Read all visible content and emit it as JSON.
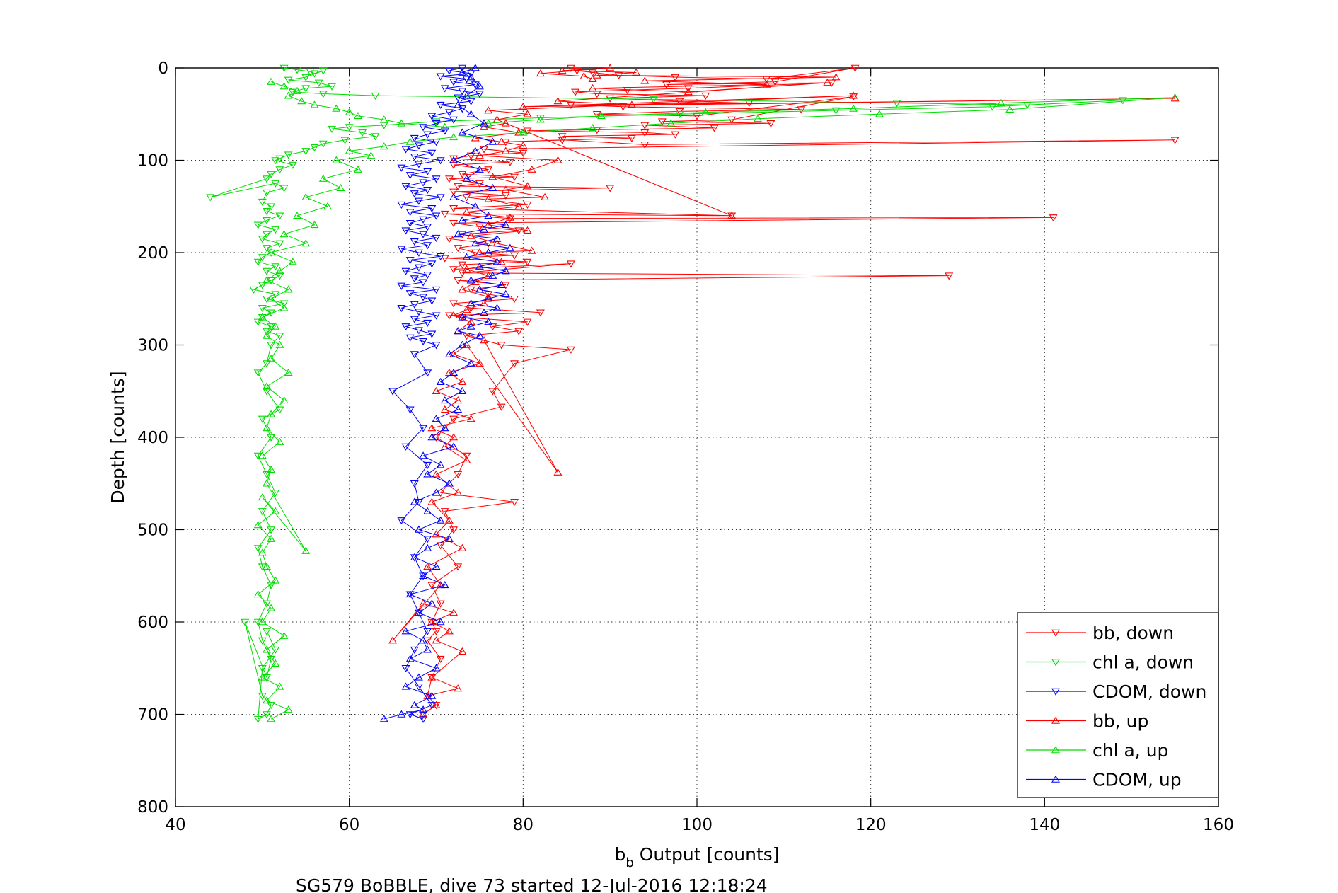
{
  "figure": {
    "caption": "SG579 BoBBLE, dive 73 started 12-Jul-2016 12:18:24"
  },
  "chart_data": {
    "type": "scatter",
    "xlabel_main": "b",
    "xlabel_sub": "b",
    "xlabel_rest": " Output [counts]",
    "ylabel": "Depth [counts]",
    "xlim": [
      40,
      160
    ],
    "ylim": [
      0,
      800
    ],
    "y_reversed": true,
    "xticks": [
      40,
      60,
      80,
      100,
      120,
      140,
      160
    ],
    "yticks": [
      0,
      100,
      200,
      300,
      400,
      500,
      600,
      700,
      800
    ],
    "grid": true,
    "grid_style": "dotted",
    "legend_position": "bottom-right",
    "series": [
      {
        "name": "bb, down",
        "color": "#ff0000",
        "marker": "triangle-down",
        "connected": true,
        "x": [
          85.5,
          86.2,
          88.0,
          91.0,
          97.5,
          108.0,
          118.2,
          109.0,
          96.5,
          115.5,
          99.0,
          92.0,
          86.0,
          88.5,
          101.0,
          90.0,
          98.0,
          106.0,
          85.5,
          91.5,
          112.0,
          98.0,
          88.5,
          100.0,
          118.0,
          104.0,
          96.0,
          108.5,
          94.0,
          102.0,
          88.5,
          80.5,
          94.0,
          97.5,
          84.5,
          92.5,
          78.0,
          84.5,
          94.0,
          155.0,
          75.5,
          80.0,
          74.0,
          72.0,
          78.5,
          72.0,
          76.0,
          73.0,
          79.0,
          71.5,
          75.0,
          72.5,
          90.0,
          72.0,
          78.0,
          73.5,
          80.5,
          72.0,
          104.0,
          71.0,
          78.5,
          141.0,
          72.0,
          75.0,
          79.5,
          73.0,
          71.5,
          76.0,
          72.5,
          74.5,
          79.0,
          71.0,
          80.5,
          73.0,
          72.0,
          85.5,
          73.0,
          129.0,
          72.5,
          78.0,
          74.0,
          76.0,
          79.0,
          72.0,
          74.0,
          82.0,
          71.5,
          73.0,
          80.5,
          76.5,
          79.5,
          73.5,
          77.5,
          85.5,
          79.0,
          76.5,
          77.5,
          72.0,
          70.0,
          73.5,
          72.5,
          70.5,
          79.0,
          71.0,
          72.0,
          70.5,
          72.5,
          69.5,
          70.5,
          69.5,
          70.0,
          69.0,
          70.5,
          69.5,
          69.0,
          70.0,
          68.5
        ],
        "y": [
          0,
          3,
          5,
          8,
          10,
          12,
          0,
          15,
          18,
          16,
          22,
          24,
          26,
          28,
          30,
          33,
          36,
          38,
          40,
          42,
          45,
          47,
          50,
          52,
          31,
          56,
          58,
          60,
          62,
          65,
          67,
          68,
          70,
          72,
          74,
          76,
          80,
          78,
          83,
          78,
          88,
          92,
          95,
          98,
          102,
          105,
          110,
          115,
          118,
          120,
          125,
          128,
          130,
          134,
          138,
          140,
          148,
          152,
          160,
          158,
          163,
          162,
          168,
          172,
          176,
          180,
          185,
          190,
          195,
          200,
          203,
          206,
          210,
          213,
          218,
          212,
          222,
          225,
          230,
          235,
          240,
          245,
          250,
          255,
          260,
          265,
          268,
          270,
          275,
          280,
          285,
          290,
          300,
          305,
          320,
          350,
          367,
          380,
          400,
          420,
          440,
          460,
          470,
          480,
          500,
          517,
          540,
          560,
          580,
          600,
          610,
          620,
          640,
          660,
          680,
          690,
          700
        ]
      },
      {
        "name": "chl a, down",
        "color": "#00dd00",
        "marker": "triangle-down",
        "connected": true,
        "x": [
          52.5,
          54.0,
          55.5,
          56.0,
          57.0,
          55.0,
          53.0,
          56.5,
          58.0,
          55.0,
          53.5,
          57.0,
          63.0,
          95.0,
          123.0,
          138.0,
          149.0,
          134.0,
          116.0,
          98.0,
          82.0,
          70.0,
          64.0,
          60.0,
          58.0,
          61.5,
          63.0,
          59.5,
          57.0,
          56.0,
          55.0,
          53.0,
          52.0,
          51.5,
          53.5,
          52.0,
          51.0,
          50.5,
          44.0,
          51.5,
          52.5,
          50.5,
          50.0,
          51.0,
          50.5,
          52.0,
          50.5,
          49.5,
          51.5,
          50.5,
          50.0,
          52.0,
          50.5,
          51.0,
          50.0,
          49.5,
          51.5,
          50.5,
          52.0,
          51.0,
          50.0,
          49.0,
          51.5,
          50.5,
          52.5,
          50.0,
          51.0,
          50.0,
          49.5,
          51.0,
          50.5,
          52.0,
          51.0,
          50.5,
          49.5,
          50.5,
          52.0,
          50.0,
          51.0,
          49.5,
          50.5,
          51.5,
          50.0,
          51.0,
          49.5,
          50.0,
          51.0,
          50.5,
          49.5,
          50.0,
          51.0,
          50.5,
          48.0,
          50.0,
          51.0,
          50.5,
          49.5,
          50.0,
          51.5,
          50.5
        ],
        "y": [
          0,
          2,
          4,
          6,
          3,
          10,
          13,
          16,
          20,
          22,
          26,
          28,
          30,
          34,
          38,
          40,
          35,
          42,
          46,
          50,
          54,
          58,
          62,
          64,
          66,
          70,
          74,
          78,
          82,
          86,
          90,
          94,
          98,
          100,
          105,
          110,
          115,
          120,
          140,
          125,
          130,
          135,
          145,
          150,
          155,
          160,
          165,
          170,
          175,
          180,
          185,
          190,
          195,
          200,
          205,
          210,
          215,
          220,
          225,
          230,
          235,
          240,
          245,
          250,
          255,
          260,
          265,
          270,
          275,
          280,
          285,
          290,
          300,
          320,
          330,
          350,
          370,
          380,
          400,
          420,
          440,
          460,
          480,
          500,
          520,
          540,
          560,
          580,
          600,
          620,
          640,
          660,
          600,
          680,
          690,
          700,
          705,
          650,
          630,
          610
        ]
      },
      {
        "name": "CDOM, down",
        "color": "#0000ff",
        "marker": "triangle-down",
        "connected": true,
        "x": [
          73.0,
          71.5,
          74.0,
          70.5,
          73.5,
          72.0,
          74.5,
          71.0,
          73.0,
          75.0,
          72.5,
          74.0,
          70.5,
          73.0,
          71.5,
          69.5,
          72.0,
          70.0,
          68.5,
          71.0,
          69.0,
          67.5,
          70.0,
          68.0,
          66.5,
          69.5,
          67.5,
          70.5,
          68.0,
          66.0,
          69.0,
          67.0,
          70.0,
          68.5,
          66.5,
          69.0,
          67.5,
          70.5,
          68.0,
          66.0,
          69.5,
          67.0,
          70.0,
          68.5,
          67.0,
          69.0,
          66.5,
          68.5,
          70.0,
          67.5,
          69.0,
          66.0,
          68.0,
          70.5,
          67.0,
          69.5,
          68.0,
          66.5,
          69.0,
          67.5,
          68.5,
          66.0,
          70.0,
          67.0,
          68.5,
          69.5,
          67.5,
          66.0,
          68.0,
          70.0,
          67.5,
          69.0,
          66.5,
          68.0,
          69.5,
          67.0,
          68.5,
          70.0,
          67.5,
          69.0,
          65.0,
          67.0,
          68.5,
          66.5,
          69.0,
          67.5,
          68.0,
          66.0,
          69.0,
          67.5,
          68.5,
          67.0,
          68.0,
          69.0,
          67.5,
          66.5,
          68.0,
          69.5,
          67.0,
          68.5
        ],
        "y": [
          0,
          3,
          6,
          9,
          12,
          15,
          18,
          22,
          25,
          28,
          32,
          36,
          40,
          44,
          48,
          52,
          56,
          60,
          64,
          68,
          72,
          76,
          80,
          84,
          88,
          92,
          96,
          100,
          104,
          108,
          112,
          116,
          120,
          124,
          128,
          132,
          136,
          140,
          144,
          148,
          152,
          156,
          160,
          164,
          168,
          172,
          176,
          180,
          184,
          188,
          192,
          196,
          200,
          204,
          208,
          212,
          216,
          220,
          224,
          228,
          232,
          236,
          240,
          244,
          248,
          252,
          256,
          260,
          264,
          268,
          272,
          276,
          280,
          284,
          288,
          292,
          296,
          300,
          310,
          330,
          350,
          370,
          390,
          410,
          430,
          450,
          470,
          490,
          510,
          530,
          550,
          570,
          590,
          610,
          630,
          650,
          670,
          690,
          700,
          705
        ]
      },
      {
        "name": "bb, up",
        "color": "#ff0000",
        "marker": "triangle-up",
        "connected": true,
        "x": [
          68.5,
          70.0,
          69.0,
          72.5,
          69.5,
          73.0,
          70.0,
          71.5,
          69.5,
          72.0,
          68.5,
          65.0,
          70.5,
          69.0,
          73.0,
          70.0,
          71.5,
          69.5,
          72.5,
          70.0,
          73.5,
          71.0,
          72.0,
          69.5,
          74.0,
          71.0,
          72.5,
          70.0,
          73.0,
          71.5,
          75.0,
          72.0,
          73.5,
          84.0,
          75.5,
          72.5,
          74.0,
          72.0,
          73.5,
          75.5,
          76.0,
          73.0,
          74.5,
          76.0,
          73.5,
          77.5,
          75.0,
          81.0,
          77.0,
          74.0,
          80.5,
          76.0,
          78.5,
          73.5,
          79.5,
          76.0,
          82.5,
          78.0,
          80.5,
          76.5,
          81.0,
          84.0,
          75.0,
          78.0,
          80.0,
          77.5,
          74.5,
          79.5,
          75.5,
          78.0,
          104.0,
          77.0,
          80.5,
          76.0,
          118.0,
          80.0,
          155.0,
          92.5,
          84.0,
          115.0,
          99.0,
          88.0,
          108.0,
          94.0,
          116.0,
          88.5,
          93.0,
          84.5,
          90.0,
          82.0,
          87.0,
          88.0
        ],
        "y": [
          700,
          690,
          680,
          672,
          660,
          632,
          620,
          610,
          600,
          590,
          580,
          620,
          560,
          540,
          520,
          505,
          490,
          470,
          460,
          440,
          425,
          410,
          400,
          390,
          380,
          370,
          360,
          350,
          340,
          330,
          320,
          310,
          300,
          438,
          295,
          285,
          275,
          268,
          262,
          255,
          248,
          240,
          232,
          225,
          218,
          210,
          200,
          198,
          190,
          182,
          176,
          170,
          162,
          156,
          150,
          142,
          140,
          132,
          128,
          118,
          110,
          100,
          95,
          90,
          84,
          80,
          76,
          70,
          64,
          60,
          160,
          56,
          50,
          46,
          30,
          42,
          33,
          40,
          36,
          16,
          26,
          22,
          18,
          14,
          10,
          8,
          5,
          3,
          0,
          6,
          9,
          12
        ]
      },
      {
        "name": "chl a, up",
        "color": "#00dd00",
        "marker": "triangle-up",
        "connected": true,
        "x": [
          51.0,
          53.0,
          50.5,
          52.0,
          50.0,
          51.5,
          50.5,
          52.5,
          50.0,
          51.0,
          49.5,
          51.5,
          50.5,
          50.0,
          51.0,
          49.5,
          51.5,
          50.0,
          55.0,
          50.5,
          51.0,
          50.0,
          52.0,
          50.5,
          51.0,
          52.5,
          50.5,
          53.0,
          51.0,
          52.0,
          50.5,
          51.5,
          50.0,
          52.5,
          51.0,
          53.0,
          50.5,
          52.0,
          53.5,
          51.0,
          55.0,
          52.5,
          56.0,
          54.0,
          57.5,
          55.0,
          59.0,
          57.0,
          61.0,
          58.5,
          62.5,
          60.0,
          64.0,
          67.0,
          72.0,
          80.0,
          88.0,
          97.0,
          107.0,
          121.0,
          136.0,
          155.0,
          135.0,
          118.0,
          101.0,
          89.0,
          82.0,
          76.0,
          71.0,
          66.0,
          64.0,
          61.0,
          60.0,
          58.5,
          56.0,
          54.5,
          53.0,
          54.0,
          52.5,
          51.0
        ],
        "y": [
          705,
          695,
          685,
          670,
          660,
          645,
          630,
          615,
          600,
          585,
          570,
          555,
          540,
          525,
          510,
          495,
          480,
          465,
          523,
          450,
          435,
          420,
          405,
          390,
          375,
          360,
          345,
          330,
          315,
          300,
          290,
          280,
          270,
          260,
          250,
          240,
          230,
          220,
          210,
          200,
          190,
          180,
          170,
          160,
          150,
          140,
          130,
          120,
          110,
          100,
          95,
          90,
          85,
          80,
          75,
          70,
          65,
          60,
          55,
          50,
          45,
          32,
          38,
          44,
          48,
          52,
          56,
          60,
          64,
          60,
          56,
          52,
          48,
          44,
          40,
          36,
          30,
          25,
          20,
          15
        ]
      },
      {
        "name": "CDOM, up",
        "color": "#0000ff",
        "marker": "triangle-up",
        "connected": true,
        "x": [
          64.0,
          66.0,
          68.5,
          67.5,
          69.5,
          66.5,
          68.0,
          70.0,
          67.0,
          69.0,
          68.5,
          66.5,
          70.5,
          68.0,
          69.5,
          67.0,
          71.0,
          68.5,
          70.0,
          67.5,
          69.0,
          71.5,
          68.0,
          70.5,
          69.0,
          67.5,
          70.0,
          71.5,
          69.0,
          70.5,
          68.5,
          72.0,
          69.5,
          71.0,
          70.0,
          72.5,
          71.0,
          73.0,
          70.5,
          72.0,
          74.0,
          71.5,
          73.0,
          75.0,
          72.5,
          74.0,
          76.0,
          73.0,
          75.5,
          77.0,
          74.0,
          76.0,
          78.0,
          75.0,
          77.5,
          74.0,
          76.5,
          78.0,
          75.0,
          77.0,
          73.5,
          76.0,
          78.5,
          74.5,
          77.0,
          72.5,
          75.5,
          78.0,
          73.0,
          76.0,
          74.5,
          72.0,
          76.5,
          73.5,
          75.0,
          72.0,
          74.5,
          76.5,
          73.0,
          75.5,
          74.0,
          72.5,
          73.5,
          75.0,
          74.0,
          73.0,
          74.5
        ],
        "y": [
          705,
          700,
          695,
          690,
          680,
          670,
          660,
          650,
          640,
          630,
          620,
          610,
          600,
          590,
          580,
          570,
          560,
          550,
          540,
          530,
          520,
          510,
          500,
          490,
          480,
          470,
          460,
          450,
          440,
          430,
          420,
          410,
          400,
          390,
          380,
          370,
          360,
          350,
          340,
          330,
          320,
          310,
          300,
          290,
          285,
          280,
          275,
          270,
          265,
          260,
          255,
          250,
          245,
          240,
          235,
          230,
          225,
          220,
          215,
          210,
          205,
          200,
          195,
          190,
          185,
          180,
          175,
          170,
          165,
          160,
          150,
          140,
          130,
          120,
          110,
          100,
          90,
          80,
          70,
          60,
          50,
          40,
          30,
          20,
          10,
          5,
          0
        ]
      }
    ]
  }
}
